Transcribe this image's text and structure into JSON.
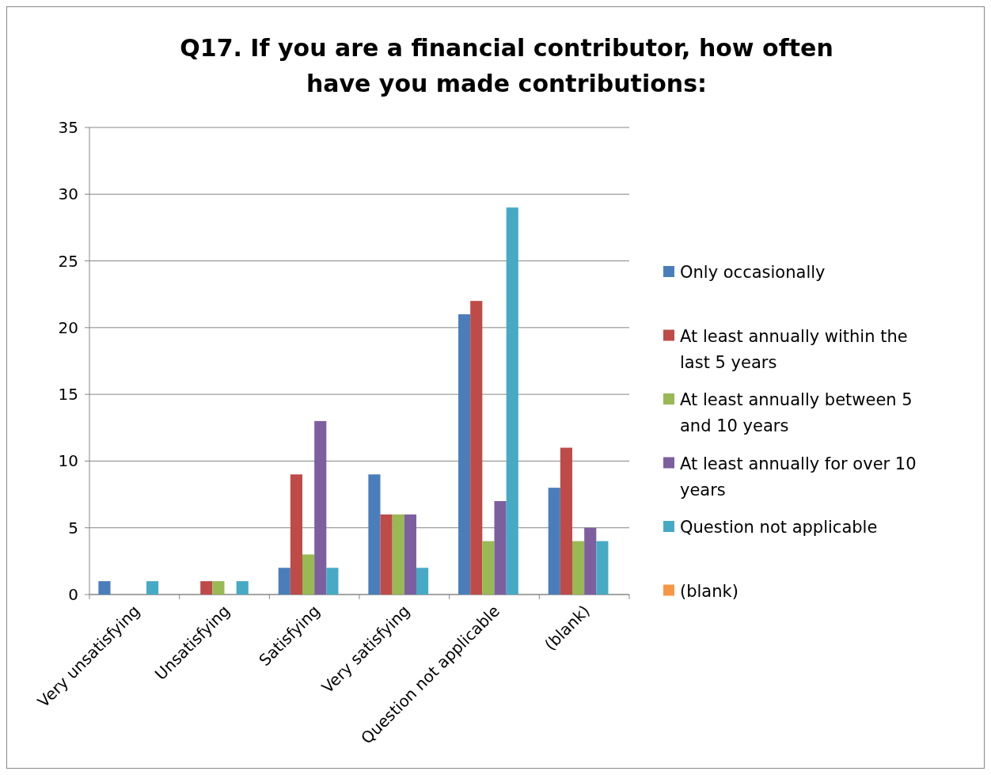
{
  "chart_data": {
    "type": "bar",
    "title": "Q17. If you are a financial contributor, how often\nhave you made contributions:",
    "categories": [
      "Very unsatisfying",
      "Unsatisfying",
      "Satisfying",
      "Very satisfying",
      "Question not applicable",
      "(blank)"
    ],
    "series": [
      {
        "name": "Only occasionally",
        "color": "#4a7ebb",
        "values": [
          1,
          0,
          2,
          9,
          21,
          8
        ]
      },
      {
        "name": "At least annually within the last 5 years",
        "color": "#be4b48",
        "values": [
          0,
          1,
          9,
          6,
          22,
          11
        ]
      },
      {
        "name": "At least annually between 5 and 10 years",
        "color": "#98b954",
        "values": [
          0,
          1,
          3,
          6,
          4,
          4
        ]
      },
      {
        "name": "At least annually for over 10 years",
        "color": "#7d5fa0",
        "values": [
          0,
          0,
          13,
          6,
          7,
          5
        ]
      },
      {
        "name": "Question not applicable",
        "color": "#46aac5",
        "values": [
          1,
          1,
          2,
          2,
          29,
          4
        ]
      },
      {
        "name": "(blank)",
        "color": "#f79646",
        "values": [
          null,
          null,
          null,
          null,
          null,
          null
        ]
      }
    ],
    "ylim": [
      0,
      35
    ],
    "yticks": [
      0,
      5,
      10,
      15,
      20,
      25,
      30,
      35
    ],
    "grid": "y",
    "legend": "right"
  }
}
